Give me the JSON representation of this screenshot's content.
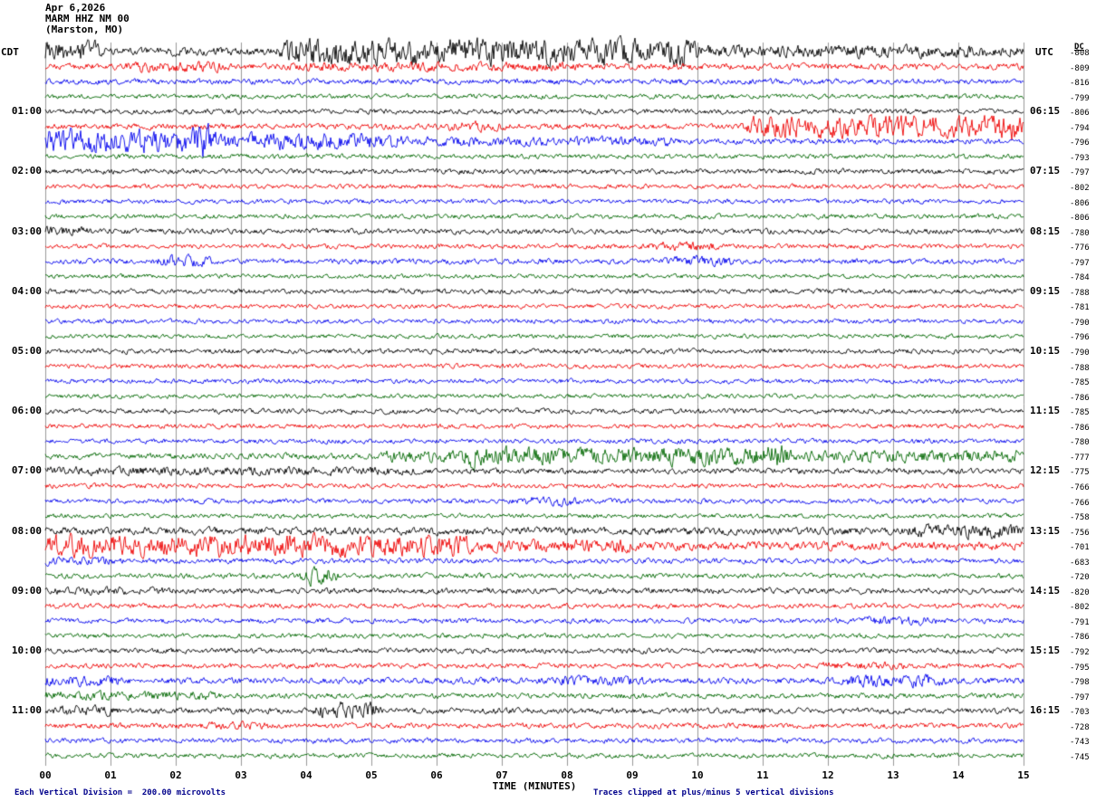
{
  "chart_data": {
    "type": "line",
    "title": "MARM HHZ NM 00 helicorder",
    "date": "Apr 6,2026",
    "station": "MARM HHZ NM 00",
    "location": "(Marston, MO)",
    "xlabel": "TIME (MINUTES)",
    "x_ticks": [
      "00",
      "01",
      "02",
      "03",
      "04",
      "05",
      "06",
      "07",
      "08",
      "09",
      "10",
      "11",
      "12",
      "13",
      "14",
      "15"
    ],
    "minutes_per_line": 15,
    "rows": 48,
    "left_axis": {
      "title": "CDT",
      "start_row": 4,
      "row_step": 4,
      "ticks": [
        "01:00",
        "02:00",
        "03:00",
        "04:00",
        "05:00",
        "06:00",
        "07:00",
        "08:00",
        "09:00",
        "10:00",
        "11:00"
      ]
    },
    "right_axis": {
      "title": "UTC",
      "start_row": 4,
      "row_step": 4,
      "ticks": [
        "06:15",
        "07:15",
        "08:15",
        "09:15",
        "10:15",
        "11:15",
        "12:15",
        "13:15",
        "14:15",
        "15:15",
        "16:15"
      ]
    },
    "dc_column": {
      "title": "DC",
      "values": [
        "-808",
        "-809",
        "-816",
        "-799",
        "-806",
        "-794",
        "-796",
        "-793",
        "-797",
        "-802",
        "-806",
        "-806",
        "-780",
        "-776",
        "-797",
        "-784",
        "-788",
        "-781",
        "-790",
        "-796",
        "-790",
        "-788",
        "-785",
        "-786",
        "-785",
        "-786",
        "-780",
        "-777",
        "-775",
        "-766",
        "-766",
        "-758",
        "-756",
        "-701",
        "-683",
        "-720",
        "-820",
        "-802",
        "-791",
        "-786",
        "-792",
        "-795",
        "-798",
        "-797",
        "-703",
        "-728",
        "-743",
        "-745"
      ]
    },
    "trace_colors": [
      "#000000",
      "#ee0000",
      "#0000ee",
      "#006600"
    ],
    "grid_color": "#999999",
    "row_amps": [
      2.5,
      2.0,
      1.8,
      1.5,
      1.6,
      1.8,
      1.8,
      1.5,
      1.7,
      1.5,
      1.5,
      1.5,
      1.7,
      1.5,
      1.7,
      1.4,
      1.6,
      1.4,
      1.5,
      1.4,
      1.6,
      1.5,
      1.5,
      1.4,
      1.6,
      1.5,
      1.5,
      1.8,
      1.8,
      1.5,
      1.6,
      1.5,
      2.4,
      2.0,
      1.7,
      1.6,
      1.8,
      1.6,
      1.6,
      1.5,
      1.7,
      1.6,
      2.0,
      1.7,
      1.8,
      1.7,
      1.6,
      1.5
    ],
    "events": [
      [
        0,
        0.0,
        0.7,
        4
      ],
      [
        0,
        3.8,
        9.8,
        6
      ],
      [
        0,
        9.8,
        15,
        1.5
      ],
      [
        1,
        1.4,
        2.6,
        1.5
      ],
      [
        1,
        4,
        8,
        1
      ],
      [
        5,
        6.2,
        6.9,
        1.5
      ],
      [
        5,
        10.9,
        14.8,
        5
      ],
      [
        5,
        14.8,
        15,
        3
      ],
      [
        6,
        0,
        2.4,
        6
      ],
      [
        6,
        2.4,
        5.3,
        3.5
      ],
      [
        6,
        5.3,
        9.5,
        1.2
      ],
      [
        12,
        0,
        0.5,
        1.5
      ],
      [
        13,
        9.4,
        10.2,
        1.5
      ],
      [
        14,
        1.9,
        2.4,
        2
      ],
      [
        14,
        9.7,
        10.4,
        1.5
      ],
      [
        27,
        5.3,
        6.5,
        2
      ],
      [
        27,
        6.5,
        11.2,
        4
      ],
      [
        27,
        11.2,
        15,
        2.2
      ],
      [
        28,
        0,
        5.5,
        1
      ],
      [
        30,
        7.4,
        8.0,
        1.5
      ],
      [
        32,
        13.4,
        15,
        2
      ],
      [
        33,
        0,
        6.3,
        5
      ],
      [
        33,
        6.3,
        8.8,
        2
      ],
      [
        33,
        8.8,
        15,
        0.8
      ],
      [
        34,
        0,
        1,
        1
      ],
      [
        35,
        4.05,
        4.3,
        4
      ],
      [
        36,
        0.2,
        1.8,
        0.8
      ],
      [
        38,
        12.7,
        13.5,
        1.5
      ],
      [
        41,
        12,
        13,
        1
      ],
      [
        42,
        0,
        1,
        1.5
      ],
      [
        42,
        8,
        9,
        1.2
      ],
      [
        42,
        12.4,
        13.6,
        2
      ],
      [
        43,
        0,
        2.5,
        1.2
      ],
      [
        44,
        0.2,
        0.9,
        1.5
      ],
      [
        44,
        4.3,
        5.0,
        3.5
      ],
      [
        45,
        2.5,
        3.3,
        1
      ]
    ],
    "footer": {
      "scale_note": "Each Vertical Division =  200.00 microvolts",
      "clip_note": "Traces clipped at plus/minus 5 vertical divisions"
    },
    "seed": 20260406
  }
}
